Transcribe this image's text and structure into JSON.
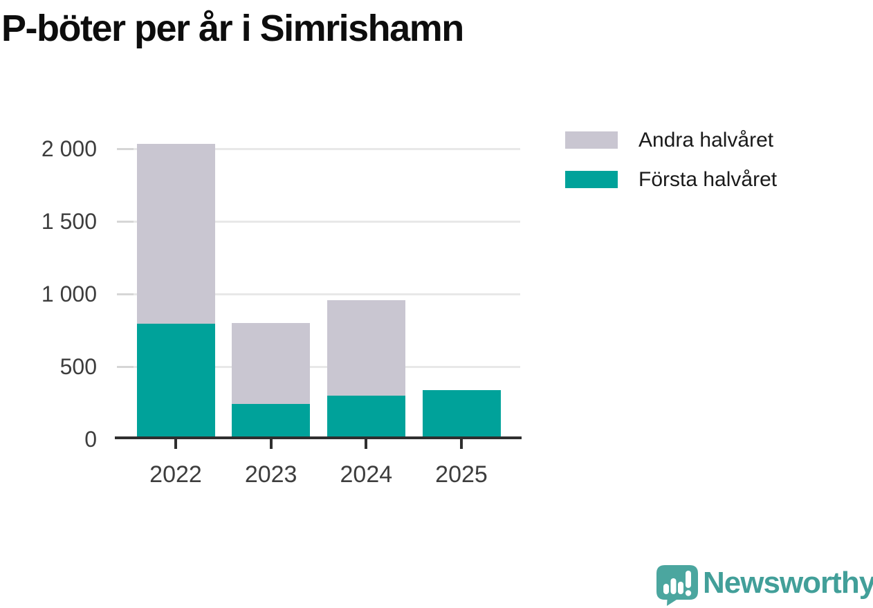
{
  "header": {
    "title": "P-böter per år i Simrishamn"
  },
  "legend": {
    "items": [
      {
        "label": "Andra halvåret",
        "color": "#c9c6d1"
      },
      {
        "label": "Första halvåret",
        "color": "#00a29a"
      }
    ]
  },
  "chart_data": {
    "type": "bar",
    "stacked": true,
    "title": "P-böter per år i Simrishamn",
    "categories": [
      "2022",
      "2023",
      "2024",
      "2025"
    ],
    "series": [
      {
        "name": "Första halvåret",
        "color": "#00a29a",
        "values": [
          785,
          235,
          290,
          330
        ]
      },
      {
        "name": "Andra halvåret",
        "color": "#c9c6d1",
        "values": [
          1240,
          555,
          660,
          0
        ]
      }
    ],
    "xlabel": "",
    "ylabel": "",
    "ylim": [
      0,
      2000
    ],
    "yticks": [
      0,
      500,
      1000,
      1500,
      2000
    ],
    "ytick_labels": [
      "0",
      "500",
      "1 000",
      "1 500",
      "2 000"
    ],
    "grid": true,
    "legend_position": "top-right",
    "colors": {
      "gridline": "#e8e8e8",
      "axis": "#2f2f2f",
      "tick_label": "#3d3d3d"
    }
  },
  "footer": {
    "brand": "Newsworthy",
    "brand_color": "#429f99",
    "logo_icon": "newsworthy-speech-bubble-chart-icon",
    "logo_color": "#4ba69f"
  }
}
